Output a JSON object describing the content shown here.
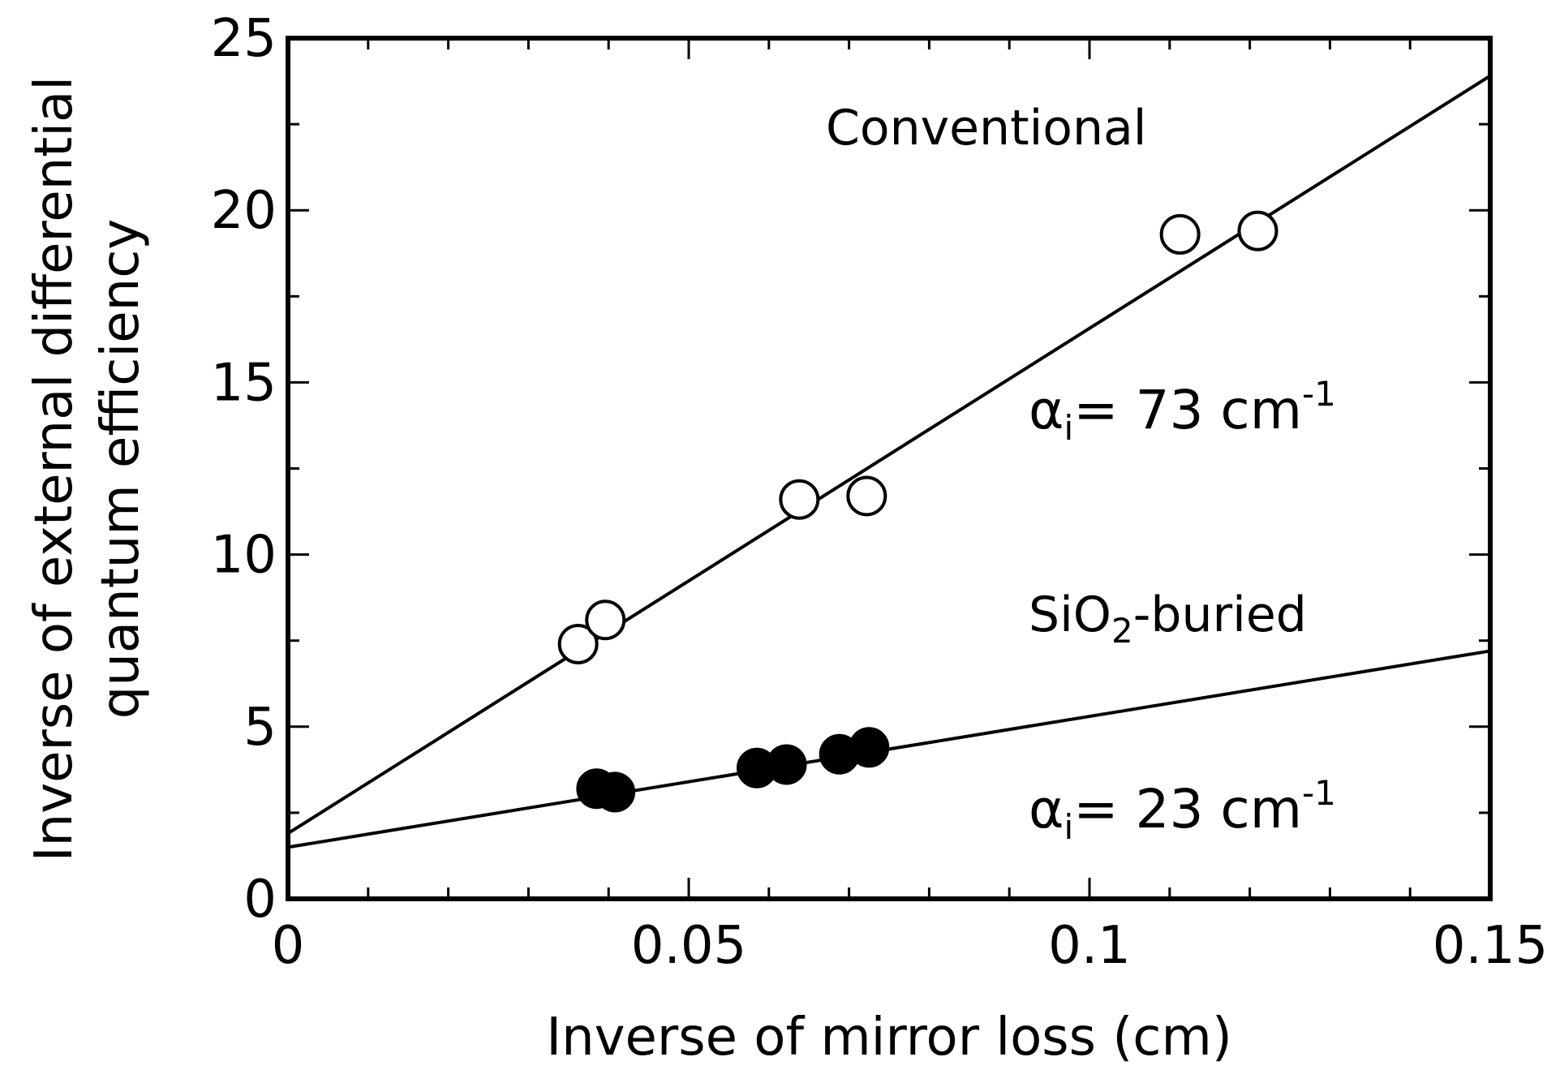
{
  "chart_data": {
    "type": "scatter",
    "title": "",
    "xlabel": "Inverse of mirror loss (cm)",
    "ylabel_line1": "Inverse of external differential",
    "ylabel_line2": "quantum efficiency",
    "xlim": [
      0,
      0.15
    ],
    "ylim": [
      0,
      25
    ],
    "x_ticks": [
      {
        "value": 0,
        "label": "0"
      },
      {
        "value": 0.05,
        "label": "0.05"
      },
      {
        "value": 0.1,
        "label": "0.1"
      },
      {
        "value": 0.15,
        "label": "0.15"
      }
    ],
    "x_minor_step": 0.01,
    "y_ticks": [
      {
        "value": 0,
        "label": "0"
      },
      {
        "value": 5,
        "label": "5"
      },
      {
        "value": 10,
        "label": "10"
      },
      {
        "value": 15,
        "label": "15"
      },
      {
        "value": 20,
        "label": "20"
      },
      {
        "value": 25,
        "label": "25"
      }
    ],
    "y_minor_step": 2.5,
    "grid": false,
    "series": [
      {
        "name": "Conventional",
        "marker": "open-circle",
        "x": [
          0.0362,
          0.0396,
          0.0638,
          0.0722,
          0.1113,
          0.121
        ],
        "y": [
          7.4,
          8.1,
          11.6,
          11.7,
          19.3,
          19.4
        ],
        "fit": {
          "intercept": 1.9,
          "slope": 146.7
        },
        "annotation_base": "α",
        "annotation_sub": "i",
        "annotation_text": "= 73 cm",
        "annotation_sup": "-1"
      },
      {
        "name": "SiO",
        "name_sub": "2",
        "name_suffix": "-buried",
        "marker": "filled-circle",
        "x": [
          0.0385,
          0.0408,
          0.0585,
          0.0622,
          0.0688,
          0.0725
        ],
        "y": [
          3.2,
          3.1,
          3.8,
          3.9,
          4.2,
          4.4
        ],
        "fit": {
          "intercept": 1.5,
          "slope": 38.0
        },
        "annotation_base": "α",
        "annotation_sub": "i",
        "annotation_text": "= 23 cm",
        "annotation_sup": "-1"
      }
    ],
    "colors": {
      "line": "#000000",
      "open_fill": "#ffffff",
      "filled": "#000000"
    }
  }
}
